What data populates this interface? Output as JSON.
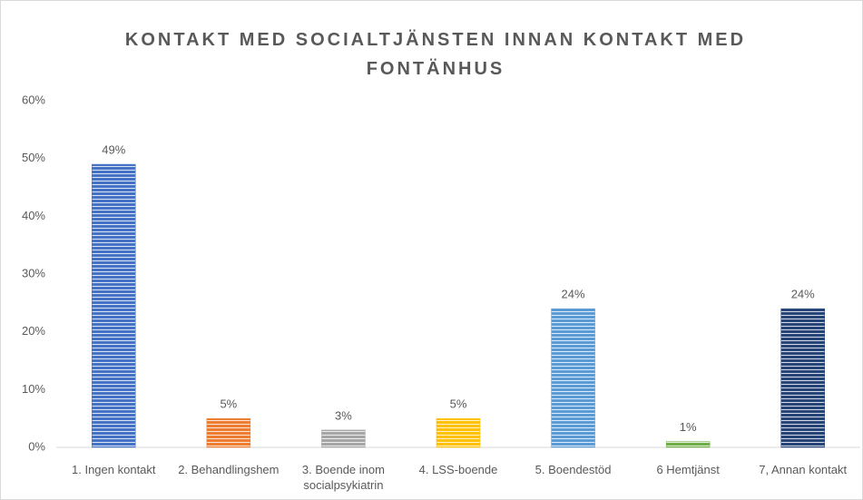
{
  "chart_data": {
    "type": "bar",
    "title": "KONTAKT MED SOCIALTJÄNSTEN INNAN KONTAKT MED FONTÄNHUS",
    "categories": [
      "1. Ingen kontakt",
      "2. Behandlingshem",
      "3. Boende inom socialpsykiatrin",
      "4. LSS-boende",
      "5. Boendestöd",
      "6 Hemtjänst",
      "7, Annan kontakt"
    ],
    "values": [
      49,
      5,
      3,
      5,
      24,
      1,
      24
    ],
    "value_labels": [
      "49%",
      "5%",
      "3%",
      "5%",
      "24%",
      "1%",
      "24%"
    ],
    "colors": [
      "#4472c4",
      "#ed7d31",
      "#a5a5a5",
      "#ffc000",
      "#5b9bd5",
      "#70ad47",
      "#264478"
    ],
    "ylim": [
      0,
      60
    ],
    "yticks": [
      {
        "value": 0,
        "label": "0%"
      },
      {
        "value": 10,
        "label": "10%"
      },
      {
        "value": 20,
        "label": "20%"
      },
      {
        "value": 30,
        "label": "30%"
      },
      {
        "value": 40,
        "label": "40%"
      },
      {
        "value": 50,
        "label": "50%"
      },
      {
        "value": 60,
        "label": "60%"
      }
    ],
    "grid": false
  }
}
